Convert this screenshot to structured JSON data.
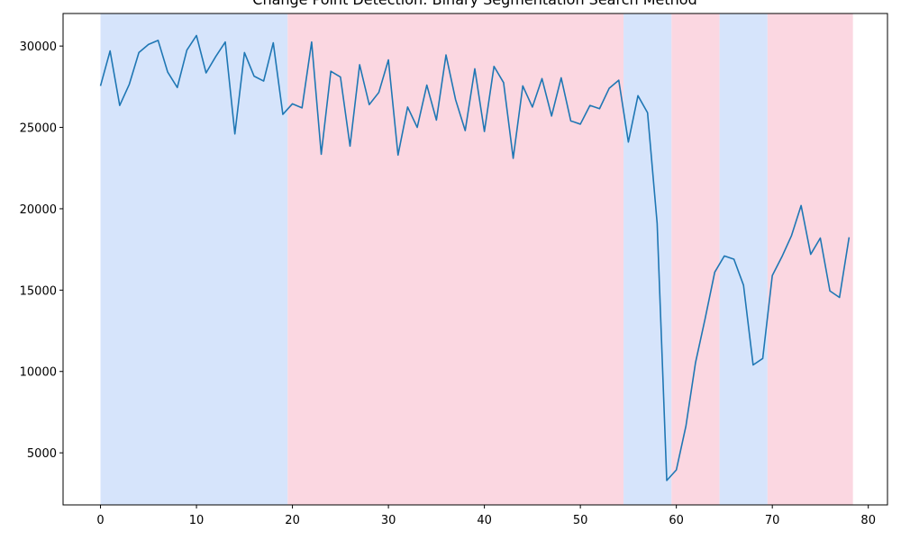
{
  "chart_data": {
    "type": "line",
    "title": "Change Point Detection: Binary Segmentation Search Method",
    "xlabel": "",
    "ylabel": "",
    "xlim": [
      -3.9,
      82.0
    ],
    "ylim": [
      1800,
      32000
    ],
    "xticks": [
      0,
      10,
      20,
      30,
      40,
      50,
      60,
      70,
      80
    ],
    "yticks": [
      5000,
      10000,
      15000,
      20000,
      25000,
      30000
    ],
    "grid": false,
    "legend": "none",
    "line_color": "#1f77b4",
    "segments": [
      {
        "start": 0,
        "end": 19.5,
        "color": "#d6e4fb"
      },
      {
        "start": 19.5,
        "end": 54.5,
        "color": "#fbd7e1"
      },
      {
        "start": 54.5,
        "end": 59.5,
        "color": "#d6e4fb"
      },
      {
        "start": 59.5,
        "end": 64.5,
        "color": "#fbd7e1"
      },
      {
        "start": 64.5,
        "end": 69.5,
        "color": "#d6e4fb"
      },
      {
        "start": 69.5,
        "end": 78.4,
        "color": "#fbd7e1"
      }
    ],
    "series": [
      {
        "values": [
          27550,
          29700,
          26350,
          27650,
          29600,
          30100,
          30350,
          28400,
          27450,
          29750,
          30650,
          28350,
          29350,
          30250,
          24600,
          29600,
          28150,
          27850,
          30200,
          25800,
          26450,
          26200,
          30250,
          23350,
          28450,
          28100,
          23850,
          28850,
          26400,
          27150,
          29150,
          23300,
          26250,
          25000,
          27600,
          25450,
          29450,
          26700,
          24800,
          28600,
          24750,
          28750,
          27750,
          23100,
          27550,
          26250,
          28000,
          25700,
          28050,
          25400,
          25200,
          26350,
          26150,
          27400,
          27900,
          24100,
          26950,
          25900,
          19100,
          3300,
          3950,
          6650,
          10550,
          13250,
          16100,
          17100,
          16900,
          15300,
          10400,
          10800,
          15900,
          17050,
          18350,
          20200,
          17200,
          18200,
          14950,
          14550,
          18250
        ]
      }
    ]
  }
}
